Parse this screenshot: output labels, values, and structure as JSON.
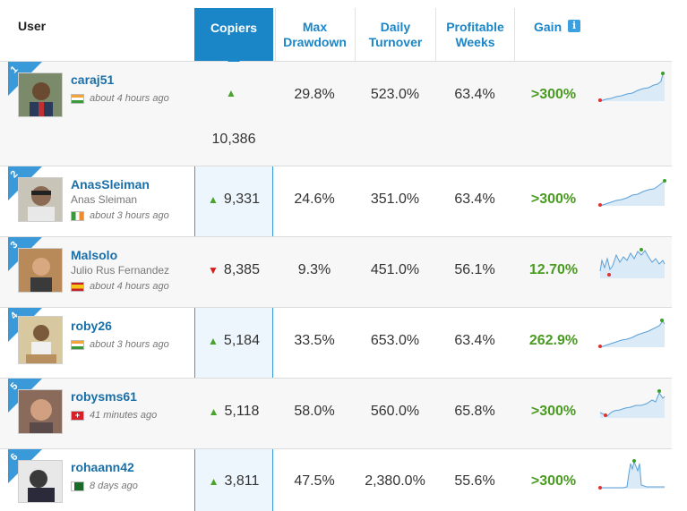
{
  "header": {
    "user": "User",
    "copiers": "Copiers",
    "max_drawdown_l1": "Max",
    "max_drawdown_l2": "Drawdown",
    "daily_turnover_l1": "Daily",
    "daily_turnover_l2": "Turnover",
    "profitable_weeks_l1": "Profitable",
    "profitable_weeks_l2": "Weeks",
    "gain": "Gain",
    "info_glyph": "i"
  },
  "colors": {
    "accent": "#1a86c8",
    "gain_green": "#4a9b22",
    "up_arrow": "#4aa42c",
    "down_arrow": "#d81b1b"
  },
  "rows": [
    {
      "rank": "1",
      "username": "caraj51",
      "realname": "",
      "flag": "india-flag",
      "time": "about 4 hours ago",
      "copiers": "10,386",
      "trend": "up",
      "drawdown": "29.8%",
      "turnover": "523.0%",
      "weeks": "63.4%",
      "gain": ">300%"
    },
    {
      "rank": "2",
      "username": "AnasSleiman",
      "realname": "Anas Sleiman",
      "flag": "ireland-flag",
      "time": "about 3 hours ago",
      "copiers": "9,331",
      "trend": "up",
      "drawdown": "24.6%",
      "turnover": "351.0%",
      "weeks": "63.4%",
      "gain": ">300%"
    },
    {
      "rank": "3",
      "username": "Malsolo",
      "realname": "Julio Rus Fernandez",
      "flag": "spain-flag",
      "time": "about 4 hours ago",
      "copiers": "8,385",
      "trend": "down",
      "drawdown": "9.3%",
      "turnover": "451.0%",
      "weeks": "56.1%",
      "gain": "12.70%"
    },
    {
      "rank": "4",
      "username": "roby26",
      "realname": "",
      "flag": "india-flag",
      "time": "about 3 hours ago",
      "copiers": "5,184",
      "trend": "up",
      "drawdown": "33.5%",
      "turnover": "653.0%",
      "weeks": "63.4%",
      "gain": "262.9%"
    },
    {
      "rank": "5",
      "username": "robysms61",
      "realname": "",
      "flag": "switzerland-flag",
      "time": "41 minutes ago",
      "copiers": "5,118",
      "trend": "up",
      "drawdown": "58.0%",
      "turnover": "560.0%",
      "weeks": "65.8%",
      "gain": ">300%"
    },
    {
      "rank": "6",
      "username": "rohaann42",
      "realname": "",
      "flag": "pakistan-flag",
      "time": "8 days ago",
      "copiers": "3,811",
      "trend": "up",
      "drawdown": "47.5%",
      "turnover": "2,380.0%",
      "weeks": "55.6%",
      "gain": ">300%"
    }
  ]
}
